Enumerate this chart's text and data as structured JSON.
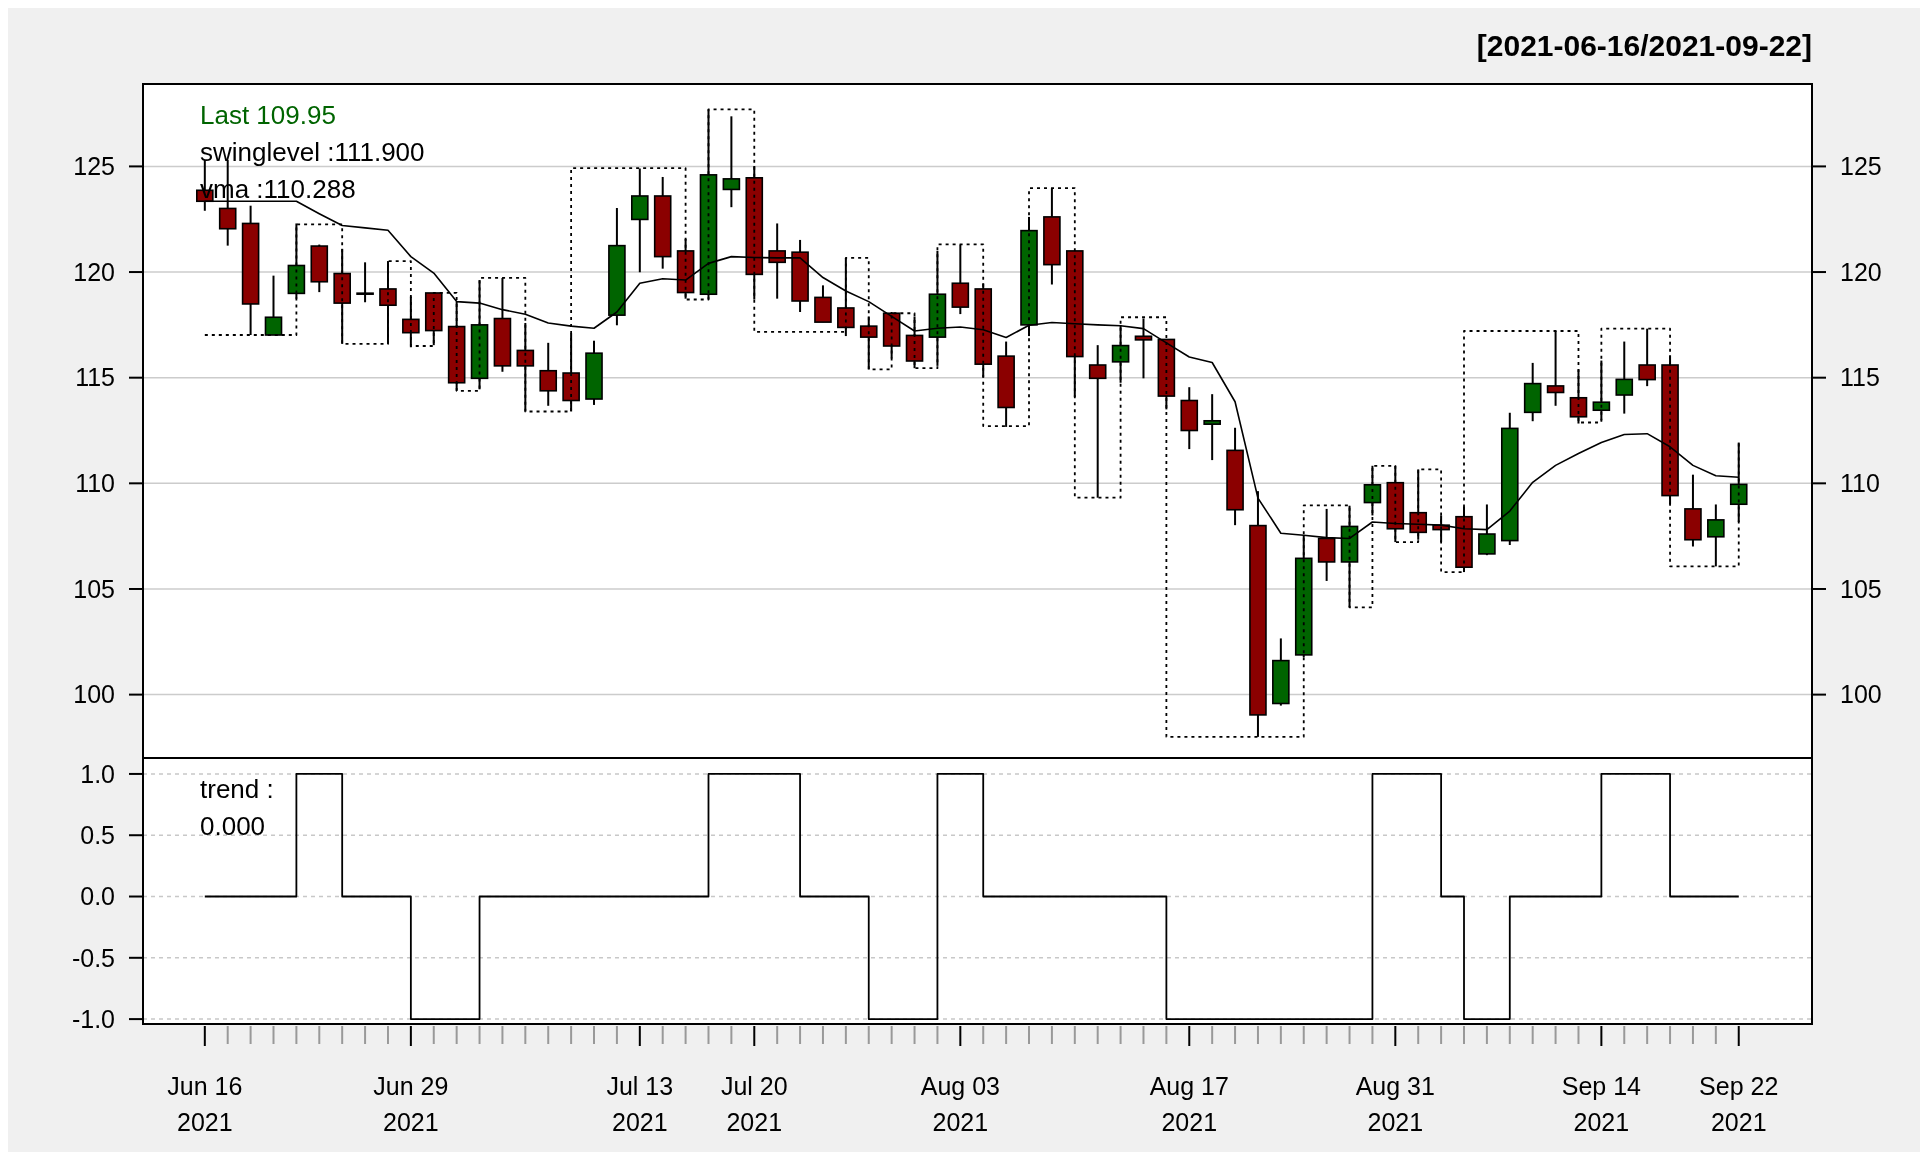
{
  "chart_data": [
    {
      "type": "candlestick",
      "title": "[2021-06-16/2021-09-22]",
      "annotations": [
        "Last 109.95",
        "swinglevel :111.900",
        "vma :110.288"
      ],
      "categories": [
        null,
        null,
        null,
        null,
        null,
        null,
        null,
        null,
        null,
        null,
        null,
        null,
        null,
        null,
        null,
        null,
        null,
        null,
        null,
        null,
        null,
        null,
        null,
        null,
        null,
        null,
        null,
        null,
        null,
        null,
        null,
        null,
        null,
        null,
        null,
        null,
        null,
        null,
        null,
        null,
        null,
        null,
        null,
        null,
        null,
        null,
        null,
        null,
        null,
        null,
        null,
        null,
        null,
        null,
        null,
        null,
        null,
        null,
        null,
        null,
        null,
        null,
        null,
        null,
        null,
        null,
        null,
        null
      ],
      "ylim": [
        97,
        128.9
      ],
      "y2lim": [
        97,
        128.9
      ],
      "yticks": [
        100,
        105,
        110,
        115,
        120,
        125
      ],
      "y2ticks": [
        100,
        105,
        110,
        115,
        120,
        125
      ],
      "tick_labels": "y",
      "grid": "y",
      "series": [
        {
          "ohlc": [
            [
              123.87,
              125.3,
              122.9,
              123.35
            ],
            [
              123.01,
              125.3,
              121.25,
              122.05
            ],
            [
              122.3,
              123.14,
              117.02,
              118.49
            ],
            [
              117.02,
              119.83,
              117.02,
              117.86
            ],
            [
              118.99,
              122.3,
              118.74,
              120.31
            ],
            [
              121.23,
              121.3,
              119.05,
              119.54
            ],
            [
              119.93,
              121.1,
              116.6,
              118.53
            ],
            [
              119.0,
              120.46,
              118.57,
              119.0
            ],
            [
              119.2,
              120.52,
              116.6,
              118.43
            ],
            [
              117.76,
              118.84,
              116.44,
              117.13
            ],
            [
              119.01,
              119.01,
              116.54,
              117.23
            ],
            [
              117.42,
              118.6,
              114.38,
              114.76
            ],
            [
              114.97,
              119.62,
              114.45,
              117.5
            ],
            [
              117.8,
              119.72,
              115.28,
              115.56
            ],
            [
              116.29,
              117.59,
              113.4,
              115.56
            ],
            [
              115.33,
              116.65,
              113.67,
              114.38
            ],
            [
              115.22,
              117.1,
              113.4,
              113.92
            ],
            [
              113.99,
              116.75,
              113.71,
              116.16
            ],
            [
              117.96,
              123.03,
              117.48,
              121.25
            ],
            [
              122.49,
              124.9,
              119.99,
              123.6
            ],
            [
              123.6,
              124.5,
              120.16,
              120.73
            ],
            [
              121.0,
              121.57,
              118.74,
              119.03
            ],
            [
              118.95,
              127.7,
              118.7,
              124.6
            ],
            [
              123.91,
              127.37,
              123.07,
              124.41
            ],
            [
              124.46,
              125.02,
              118.7,
              119.89
            ],
            [
              121.0,
              122.3,
              118.74,
              120.46
            ],
            [
              120.94,
              121.52,
              118.11,
              118.63
            ],
            [
              118.8,
              119.37,
              117.63,
              117.63
            ],
            [
              118.3,
              120.67,
              116.97,
              117.38
            ],
            [
              117.44,
              117.9,
              115.39,
              116.92
            ],
            [
              118.05,
              118.11,
              115.91,
              116.5
            ],
            [
              117.0,
              117.9,
              115.45,
              115.79
            ],
            [
              116.92,
              121.0,
              115.56,
              118.95
            ],
            [
              119.47,
              121.3,
              118.01,
              118.34
            ],
            [
              119.2,
              119.47,
              115.01,
              115.64
            ],
            [
              116.02,
              116.71,
              112.67,
              113.59
            ],
            [
              117.5,
              122.61,
              116.97,
              121.96
            ],
            [
              122.61,
              123.97,
              119.41,
              120.35
            ],
            [
              121.0,
              121.0,
              114.09,
              116.0
            ],
            [
              115.6,
              116.54,
              109.32,
              114.97
            ],
            [
              115.75,
              117.48,
              114.76,
              116.52
            ],
            [
              116.96,
              117.8,
              114.97,
              116.79
            ],
            [
              116.81,
              116.81,
              113.5,
              114.13
            ],
            [
              113.92,
              114.55,
              111.62,
              112.5
            ],
            [
              112.8,
              114.22,
              111.1,
              112.96
            ],
            [
              111.56,
              112.63,
              108.02,
              108.75
            ],
            [
              108.0,
              109.63,
              98.0,
              99.04
            ],
            [
              99.58,
              102.66,
              99.48,
              101.61
            ],
            [
              101.88,
              107.54,
              101.78,
              106.45
            ],
            [
              107.39,
              108.79,
              105.38,
              106.28
            ],
            [
              106.28,
              108.94,
              104.13,
              107.96
            ],
            [
              109.09,
              110.83,
              108.48,
              109.93
            ],
            [
              110.03,
              110.83,
              107.22,
              107.85
            ],
            [
              108.61,
              110.66,
              107.33,
              107.68
            ],
            [
              108.02,
              108.48,
              107.22,
              107.81
            ],
            [
              108.42,
              108.9,
              105.8,
              106.03
            ],
            [
              106.66,
              109.0,
              106.6,
              107.6
            ],
            [
              107.29,
              113.34,
              107.08,
              112.6
            ],
            [
              113.36,
              115.7,
              112.94,
              114.72
            ],
            [
              114.61,
              117.21,
              113.67,
              114.3
            ],
            [
              114.05,
              115.39,
              112.83,
              113.15
            ],
            [
              113.46,
              115.81,
              112.98,
              113.84
            ],
            [
              114.18,
              116.71,
              113.3,
              114.92
            ],
            [
              115.6,
              117.32,
              114.6,
              114.91
            ],
            [
              115.6,
              116.06,
              109.0,
              109.42
            ],
            [
              108.79,
              110.41,
              107.01,
              107.33
            ],
            [
              107.47,
              109.0,
              106.07,
              108.27
            ],
            [
              109.01,
              111.93,
              108.17,
              109.95
            ]
          ],
          "colors": [
            "#8b0000",
            "#8b0000",
            "#8b0000",
            "#006400",
            "#006400",
            "#8b0000",
            "#8b0000",
            "#8b0000",
            "#8b0000",
            "#8b0000",
            "#8b0000",
            "#8b0000",
            "#006400",
            "#8b0000",
            "#8b0000",
            "#8b0000",
            "#8b0000",
            "#006400",
            "#006400",
            "#006400",
            "#8b0000",
            "#8b0000",
            "#006400",
            "#006400",
            "#8b0000",
            "#8b0000",
            "#8b0000",
            "#8b0000",
            "#8b0000",
            "#8b0000",
            "#8b0000",
            "#8b0000",
            "#006400",
            "#8b0000",
            "#8b0000",
            "#8b0000",
            "#006400",
            "#8b0000",
            "#8b0000",
            "#8b0000",
            "#006400",
            "#8b0000",
            "#8b0000",
            "#8b0000",
            "#006400",
            "#8b0000",
            "#8b0000",
            "#006400",
            "#006400",
            "#8b0000",
            "#006400",
            "#006400",
            "#8b0000",
            "#8b0000",
            "#8b0000",
            "#8b0000",
            "#006400",
            "#006400",
            "#006400",
            "#8b0000",
            "#8b0000",
            "#006400",
            "#006400",
            "#8b0000",
            "#8b0000",
            "#8b0000",
            "#006400",
            "#006400"
          ]
        },
        {
          "type": "line",
          "color": "#000000",
          "values": [
            123.35,
            123.35,
            123.35,
            123.35,
            123.35,
            122.76,
            122.2,
            122.09,
            121.98,
            120.73,
            119.95,
            118.6,
            118.53,
            118.22,
            118.0,
            117.59,
            117.44,
            117.34,
            118.11,
            119.47,
            119.68,
            119.62,
            120.41,
            120.73,
            120.69,
            120.67,
            120.67,
            119.74,
            119.1,
            118.6,
            117.9,
            117.21,
            117.34,
            117.4,
            117.27,
            116.9,
            117.48,
            117.61,
            117.55,
            117.5,
            117.46,
            117.32,
            116.65,
            115.98,
            115.72,
            113.86,
            109.3,
            107.64,
            107.54,
            107.43,
            107.39,
            108.17,
            108.1,
            108.06,
            108.02,
            107.85,
            107.81,
            108.69,
            110.05,
            110.85,
            111.41,
            111.93,
            112.31,
            112.35,
            111.73,
            110.85,
            110.36,
            110.29
          ]
        },
        {
          "type": "step",
          "color": "#000000",
          "line_style": "dotted",
          "values": [
            117.02,
            117.02,
            117.02,
            117.02,
            122.26,
            122.26,
            116.6,
            116.6,
            120.52,
            116.5,
            119.01,
            114.38,
            119.72,
            119.72,
            113.4,
            113.4,
            124.92,
            124.92,
            124.92,
            124.92,
            124.92,
            118.7,
            127.7,
            127.7,
            117.17,
            117.17,
            117.17,
            117.17,
            120.67,
            115.39,
            118.05,
            115.45,
            121.31,
            121.31,
            112.71,
            112.71,
            123.97,
            123.97,
            109.32,
            109.32,
            117.86,
            117.86,
            98.0,
            98.0,
            98.0,
            98.0,
            98.0,
            98.0,
            108.96,
            108.96,
            104.13,
            110.83,
            107.22,
            110.66,
            105.8,
            117.21,
            117.21,
            117.21,
            117.21,
            117.21,
            112.88,
            117.32,
            117.32,
            117.32,
            106.07,
            106.07,
            106.07,
            111.9
          ]
        }
      ]
    },
    {
      "type": "step",
      "annotations": [
        "trend :",
        "0.000"
      ],
      "categories": [
        "Jun 16 2021",
        null,
        null,
        null,
        null,
        null,
        null,
        null,
        null,
        "Jun 29 2021",
        null,
        null,
        null,
        null,
        null,
        null,
        null,
        null,
        null,
        "Jul 13 2021",
        null,
        null,
        null,
        null,
        "Jul 20 2021",
        null,
        null,
        null,
        null,
        null,
        null,
        null,
        null,
        "Aug 03 2021",
        null,
        null,
        null,
        null,
        null,
        null,
        null,
        null,
        null,
        "Aug 17 2021",
        null,
        null,
        null,
        null,
        null,
        null,
        null,
        null,
        "Aug 31 2021",
        null,
        null,
        null,
        null,
        null,
        null,
        null,
        null,
        "Sep 14 2021",
        null,
        null,
        null,
        null,
        null,
        "Sep 22 2021"
      ],
      "values": [
        0,
        0,
        0,
        0,
        1,
        1,
        0,
        0,
        0,
        -1,
        -1,
        -1,
        0,
        0,
        0,
        0,
        0,
        0,
        0,
        0,
        0,
        0,
        1,
        1,
        1,
        1,
        0,
        0,
        0,
        -1,
        -1,
        -1,
        1,
        1,
        0,
        0,
        0,
        0,
        0,
        0,
        0,
        0,
        -1,
        -1,
        -1,
        -1,
        -1,
        -1,
        -1,
        -1,
        -1,
        1,
        1,
        1,
        0,
        -1,
        -1,
        0,
        0,
        0,
        0,
        1,
        1,
        1,
        0,
        0,
        0,
        0
      ],
      "color": "#000000",
      "ylim": [
        -1.04,
        1.13
      ],
      "yticks": [
        {
          "value": 1,
          "label": "1.0"
        },
        {
          "value": 0.5,
          "label": "0.5"
        },
        {
          "value": 0,
          "label": "0.0"
        },
        {
          "value": -0.5,
          "label": "-0.5"
        },
        {
          "value": -1,
          "label": "-1.0"
        }
      ],
      "grid": "y"
    }
  ]
}
